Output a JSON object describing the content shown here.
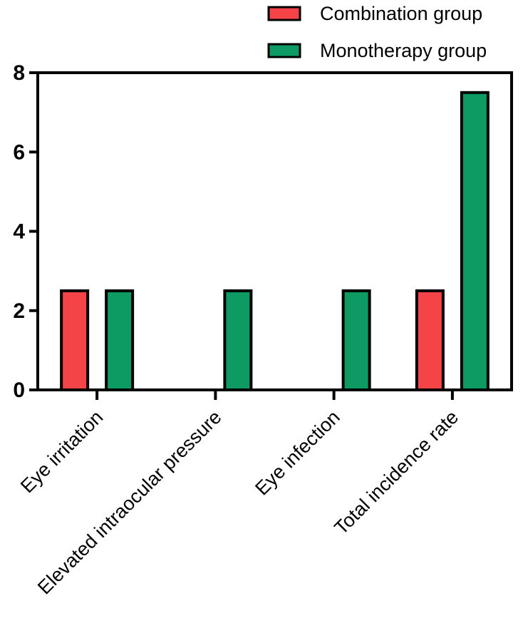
{
  "chart_data": {
    "type": "bar",
    "categories": [
      "Eye irritation",
      "Elevated intraocular pressure",
      "Eye infection",
      "Total incidence rate"
    ],
    "series": [
      {
        "name": "Combination group",
        "values": [
          2.5,
          0,
          0,
          2.5
        ],
        "color": "#f44447"
      },
      {
        "name": "Monotherapy group",
        "values": [
          2.5,
          2.5,
          2.5,
          7.5
        ],
        "color": "#0e9b63"
      }
    ],
    "yticks": [
      "0",
      "2",
      "4",
      "6",
      "8"
    ],
    "ylim": [
      0,
      8
    ],
    "grid": false,
    "legend_position": "top-right",
    "axis_color": "#000000"
  }
}
